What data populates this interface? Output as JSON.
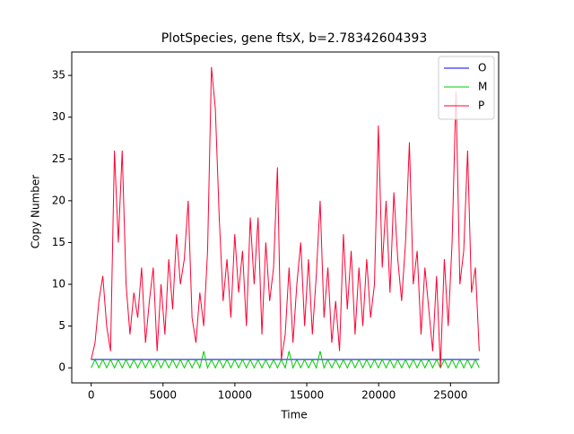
{
  "chart_data": {
    "type": "line",
    "title": "PlotSpecies, gene ftsX, b=2.78342604393",
    "xlabel": "Time",
    "ylabel": "Copy Number",
    "x": [
      0,
      270,
      540,
      810,
      1080,
      1350,
      1620,
      1890,
      2160,
      2430,
      2700,
      2970,
      3240,
      3510,
      3780,
      4050,
      4320,
      4590,
      4860,
      5130,
      5400,
      5670,
      5940,
      6210,
      6480,
      6750,
      7020,
      7290,
      7560,
      7830,
      8100,
      8370,
      8640,
      8910,
      9180,
      9450,
      9720,
      9990,
      10260,
      10530,
      10800,
      11070,
      11340,
      11610,
      11880,
      12150,
      12420,
      12690,
      12960,
      13230,
      13500,
      13770,
      14040,
      14310,
      14580,
      14850,
      15120,
      15390,
      15660,
      15930,
      16200,
      16470,
      16740,
      17010,
      17280,
      17550,
      17820,
      18090,
      18360,
      18630,
      18900,
      19170,
      19440,
      19710,
      19980,
      20250,
      20520,
      20790,
      21060,
      21330,
      21600,
      21870,
      22140,
      22410,
      22680,
      22950,
      23220,
      23490,
      23760,
      24030,
      24300,
      24570,
      24840,
      25110,
      25380,
      25650,
      25920,
      26190,
      26460,
      26730,
      27000
    ],
    "series": [
      {
        "name": "O",
        "color": "#0000ff",
        "values": [
          1,
          1,
          1,
          1,
          1,
          1,
          1,
          1,
          1,
          1,
          1,
          1,
          1,
          1,
          1,
          1,
          1,
          1,
          1,
          1,
          1,
          1,
          1,
          1,
          1,
          1,
          1,
          1,
          1,
          1,
          1,
          1,
          1,
          1,
          1,
          1,
          1,
          1,
          1,
          1,
          1,
          1,
          1,
          1,
          1,
          1,
          1,
          1,
          1,
          1,
          1,
          1,
          1,
          1,
          1,
          1,
          1,
          1,
          1,
          1,
          1,
          1,
          1,
          1,
          1,
          1,
          1,
          1,
          1,
          1,
          1,
          1,
          1,
          1,
          1,
          1,
          1,
          1,
          1,
          1,
          1,
          1,
          1,
          1,
          1,
          1,
          1,
          1,
          1,
          1,
          1,
          1,
          1,
          1,
          1,
          1,
          1,
          1,
          1,
          1,
          1
        ]
      },
      {
        "name": "M",
        "color": "#00cc00",
        "values": [
          0,
          1,
          0,
          1,
          0,
          1,
          0,
          1,
          0,
          1,
          0,
          1,
          0,
          1,
          0,
          1,
          0,
          1,
          0,
          1,
          0,
          1,
          0,
          1,
          0,
          1,
          0,
          1,
          0,
          2,
          0,
          1,
          0,
          1,
          0,
          1,
          0,
          1,
          0,
          1,
          0,
          1,
          0,
          1,
          0,
          1,
          0,
          1,
          0,
          1,
          0,
          2,
          0,
          1,
          0,
          1,
          0,
          1,
          0,
          2,
          0,
          1,
          0,
          1,
          0,
          1,
          0,
          1,
          0,
          1,
          0,
          1,
          0,
          1,
          0,
          1,
          0,
          1,
          0,
          1,
          0,
          1,
          0,
          1,
          0,
          1,
          0,
          1,
          0,
          1,
          0,
          1,
          0,
          1,
          0,
          1,
          0,
          1,
          0,
          1,
          0
        ]
      },
      {
        "name": "P",
        "color": "#ff0033",
        "values": [
          1,
          3,
          8,
          11,
          5,
          2,
          26,
          15,
          26,
          10,
          4,
          9,
          6,
          12,
          3,
          8,
          12,
          2,
          10,
          4,
          13,
          7,
          16,
          10,
          13,
          20,
          6,
          3,
          9,
          5,
          14,
          36,
          31,
          18,
          8,
          13,
          6,
          16,
          9,
          14,
          5,
          18,
          10,
          18,
          4,
          15,
          8,
          12,
          24,
          1,
          4,
          12,
          3,
          10,
          15,
          5,
          13,
          4,
          11,
          20,
          6,
          12,
          3,
          8,
          2,
          16,
          7,
          14,
          4,
          12,
          5,
          13,
          6,
          10,
          29,
          12,
          20,
          9,
          21,
          13,
          8,
          15,
          27,
          10,
          14,
          4,
          12,
          7,
          2,
          11,
          0,
          13,
          5,
          15,
          33,
          10,
          14,
          26,
          9,
          12,
          2
        ]
      }
    ],
    "xlim": [
      -1350,
      28350
    ],
    "ylim": [
      -1.8,
      37.8
    ],
    "xticks": [
      0,
      5000,
      10000,
      15000,
      20000,
      25000
    ],
    "yticks": [
      0,
      5,
      10,
      15,
      20,
      25,
      30,
      35
    ],
    "legend": "upper right"
  }
}
